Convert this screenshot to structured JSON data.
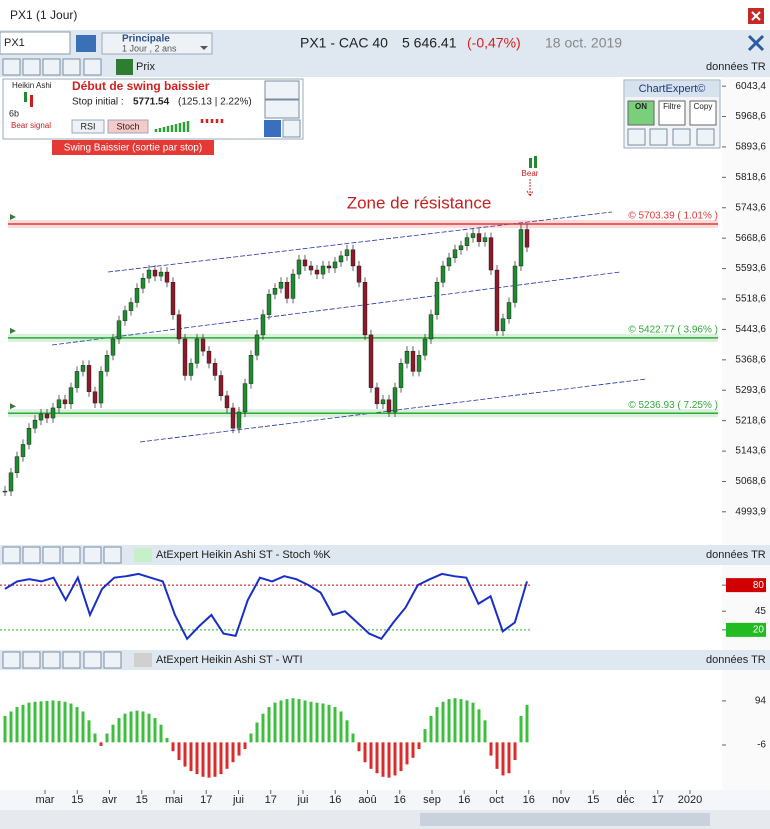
{
  "window": {
    "title": "PX1 (1 Jour)"
  },
  "toolbar": {
    "symbol": "PX1",
    "layout": "Principale",
    "period": "1 Jour , 2 ans",
    "instrument": "PX1 - CAC 40",
    "price": "5 646.41",
    "change": "(-0,47%)",
    "date": "18 oct. 2019"
  },
  "panels": {
    "main": "Prix",
    "feed": "données TR"
  },
  "signal_box": {
    "indicator": "Heikin Ashi",
    "count": "6b",
    "signal": "Bear signal",
    "title": "Début de swing baissier",
    "stop_label": "Stop initial :",
    "stop": "5771.54",
    "stop_detail": "(125.13 | 2.22%)",
    "buttons": [
      "RSI",
      "Stoch"
    ],
    "status": "Swing Baissier (sortie par stop)"
  },
  "chartexpert": {
    "title": "ChartExpert©",
    "buttons": [
      "ON",
      "Filtre",
      "Copy"
    ]
  },
  "annotation": "Zone de résistance",
  "bear_marker": "Bear",
  "date_axis": [
    "mar",
    "15",
    "avr",
    "15",
    "mai",
    "17",
    "jui",
    "17",
    "jui",
    "16",
    "aoû",
    "16",
    "sep",
    "16",
    "oct",
    "16",
    "nov",
    "15",
    "déc",
    "17",
    "2020"
  ],
  "chart_data": [
    {
      "type": "candlestick",
      "values": [
        5045,
        5090,
        5130,
        5160,
        5200,
        5220,
        5235,
        5225,
        5250,
        5270,
        5260,
        5300,
        5340,
        5355,
        5290,
        5262,
        5340,
        5380,
        5420,
        5465,
        5490,
        5510,
        5545,
        5570,
        5590,
        5575,
        5585,
        5560,
        5480,
        5420,
        5330,
        5360,
        5420,
        5390,
        5360,
        5330,
        5280,
        5250,
        5200,
        5240,
        5310,
        5380,
        5430,
        5480,
        5530,
        5545,
        5560,
        5520,
        5580,
        5615,
        5600,
        5590,
        5580,
        5600,
        5595,
        5610,
        5625,
        5640,
        5600,
        5560,
        5430,
        5300,
        5260,
        5270,
        5240,
        5300,
        5360,
        5390,
        5340,
        5380,
        5420,
        5480,
        5560,
        5600,
        5620,
        5640,
        5650,
        5670,
        5680,
        5660,
        5670,
        5590,
        5440,
        5470,
        5510,
        5600,
        5690,
        5646.41
      ],
      "ylim": [
        4912,
        6066
      ],
      "yticks": [
        {
          "value": 6043.4,
          "label": "6043,4"
        },
        {
          "value": 5968.6,
          "label": "5968,6"
        },
        {
          "value": 5893.6,
          "label": "5893,6"
        },
        {
          "value": 5818.6,
          "label": "5818,6"
        },
        {
          "value": 5743.6,
          "label": "5743,6"
        },
        {
          "value": 5668.6,
          "label": "5668,6"
        },
        {
          "value": 5593.6,
          "label": "5593,6"
        },
        {
          "value": 5518.6,
          "label": "5518,6"
        },
        {
          "value": 5443.6,
          "label": "5443,6"
        },
        {
          "value": 5368.6,
          "label": "5368,6"
        },
        {
          "value": 5293.6,
          "label": "5293,6"
        },
        {
          "value": 5218.6,
          "label": "5218,6"
        },
        {
          "value": 5143.6,
          "label": "5143,6"
        },
        {
          "value": 5068.6,
          "label": "5068,6"
        },
        {
          "value": 4993.9,
          "label": "4993,9"
        }
      ],
      "levels": [
        {
          "value": 5703.39,
          "label": "© 5703.39 ( 1.01% )",
          "color": "#e03a3a"
        },
        {
          "value": 5422.77,
          "label": "© 5422.77 ( 3.96% )",
          "color": "#2faa3a"
        },
        {
          "value": 5236.93,
          "label": "© 5236.93 ( 7.25% )",
          "color": "#2faa3a"
        }
      ],
      "up_color": "#1f8a2e",
      "down_color": "#8b1a2a"
    },
    {
      "type": "line",
      "title": "AtExpert Heikin Ashi ST - Stoch %K",
      "values": [
        75,
        85,
        88,
        85,
        90,
        60,
        90,
        40,
        75,
        90,
        92,
        95,
        90,
        85,
        40,
        8,
        25,
        40,
        15,
        12,
        60,
        90,
        85,
        92,
        88,
        80,
        70,
        40,
        45,
        30,
        15,
        8,
        30,
        50,
        80,
        88,
        95,
        92,
        90,
        55,
        65,
        18,
        30,
        85
      ],
      "color": "#1a2fc8",
      "ylim": [
        -7,
        107
      ],
      "yticks": [
        80,
        45,
        20
      ]
    },
    {
      "type": "bar",
      "title": "AtExpert Heikin Ashi ST - WTI",
      "values": [
        60,
        70,
        80,
        85,
        90,
        92,
        93,
        94,
        95,
        94,
        92,
        88,
        80,
        70,
        50,
        20,
        -8,
        20,
        40,
        55,
        65,
        70,
        72,
        70,
        65,
        55,
        40,
        10,
        -20,
        -40,
        -55,
        -65,
        -72,
        -78,
        -80,
        -78,
        -72,
        -60,
        -45,
        -30,
        -15,
        20,
        45,
        65,
        80,
        90,
        95,
        98,
        100,
        98,
        95,
        92,
        90,
        88,
        85,
        80,
        70,
        50,
        20,
        -20,
        -45,
        -60,
        -70,
        -78,
        -80,
        -75,
        -65,
        -50,
        -35,
        -15,
        30,
        60,
        80,
        92,
        98,
        100,
        98,
        95,
        90,
        75,
        50,
        -30,
        -60,
        -75,
        -70,
        -40,
        60,
        85
      ],
      "pos_color": "#3cbf3c",
      "neg_color": "#dd2a2a",
      "ylim": [
        -108,
        164
      ],
      "yticks": [
        94,
        -6
      ]
    }
  ]
}
